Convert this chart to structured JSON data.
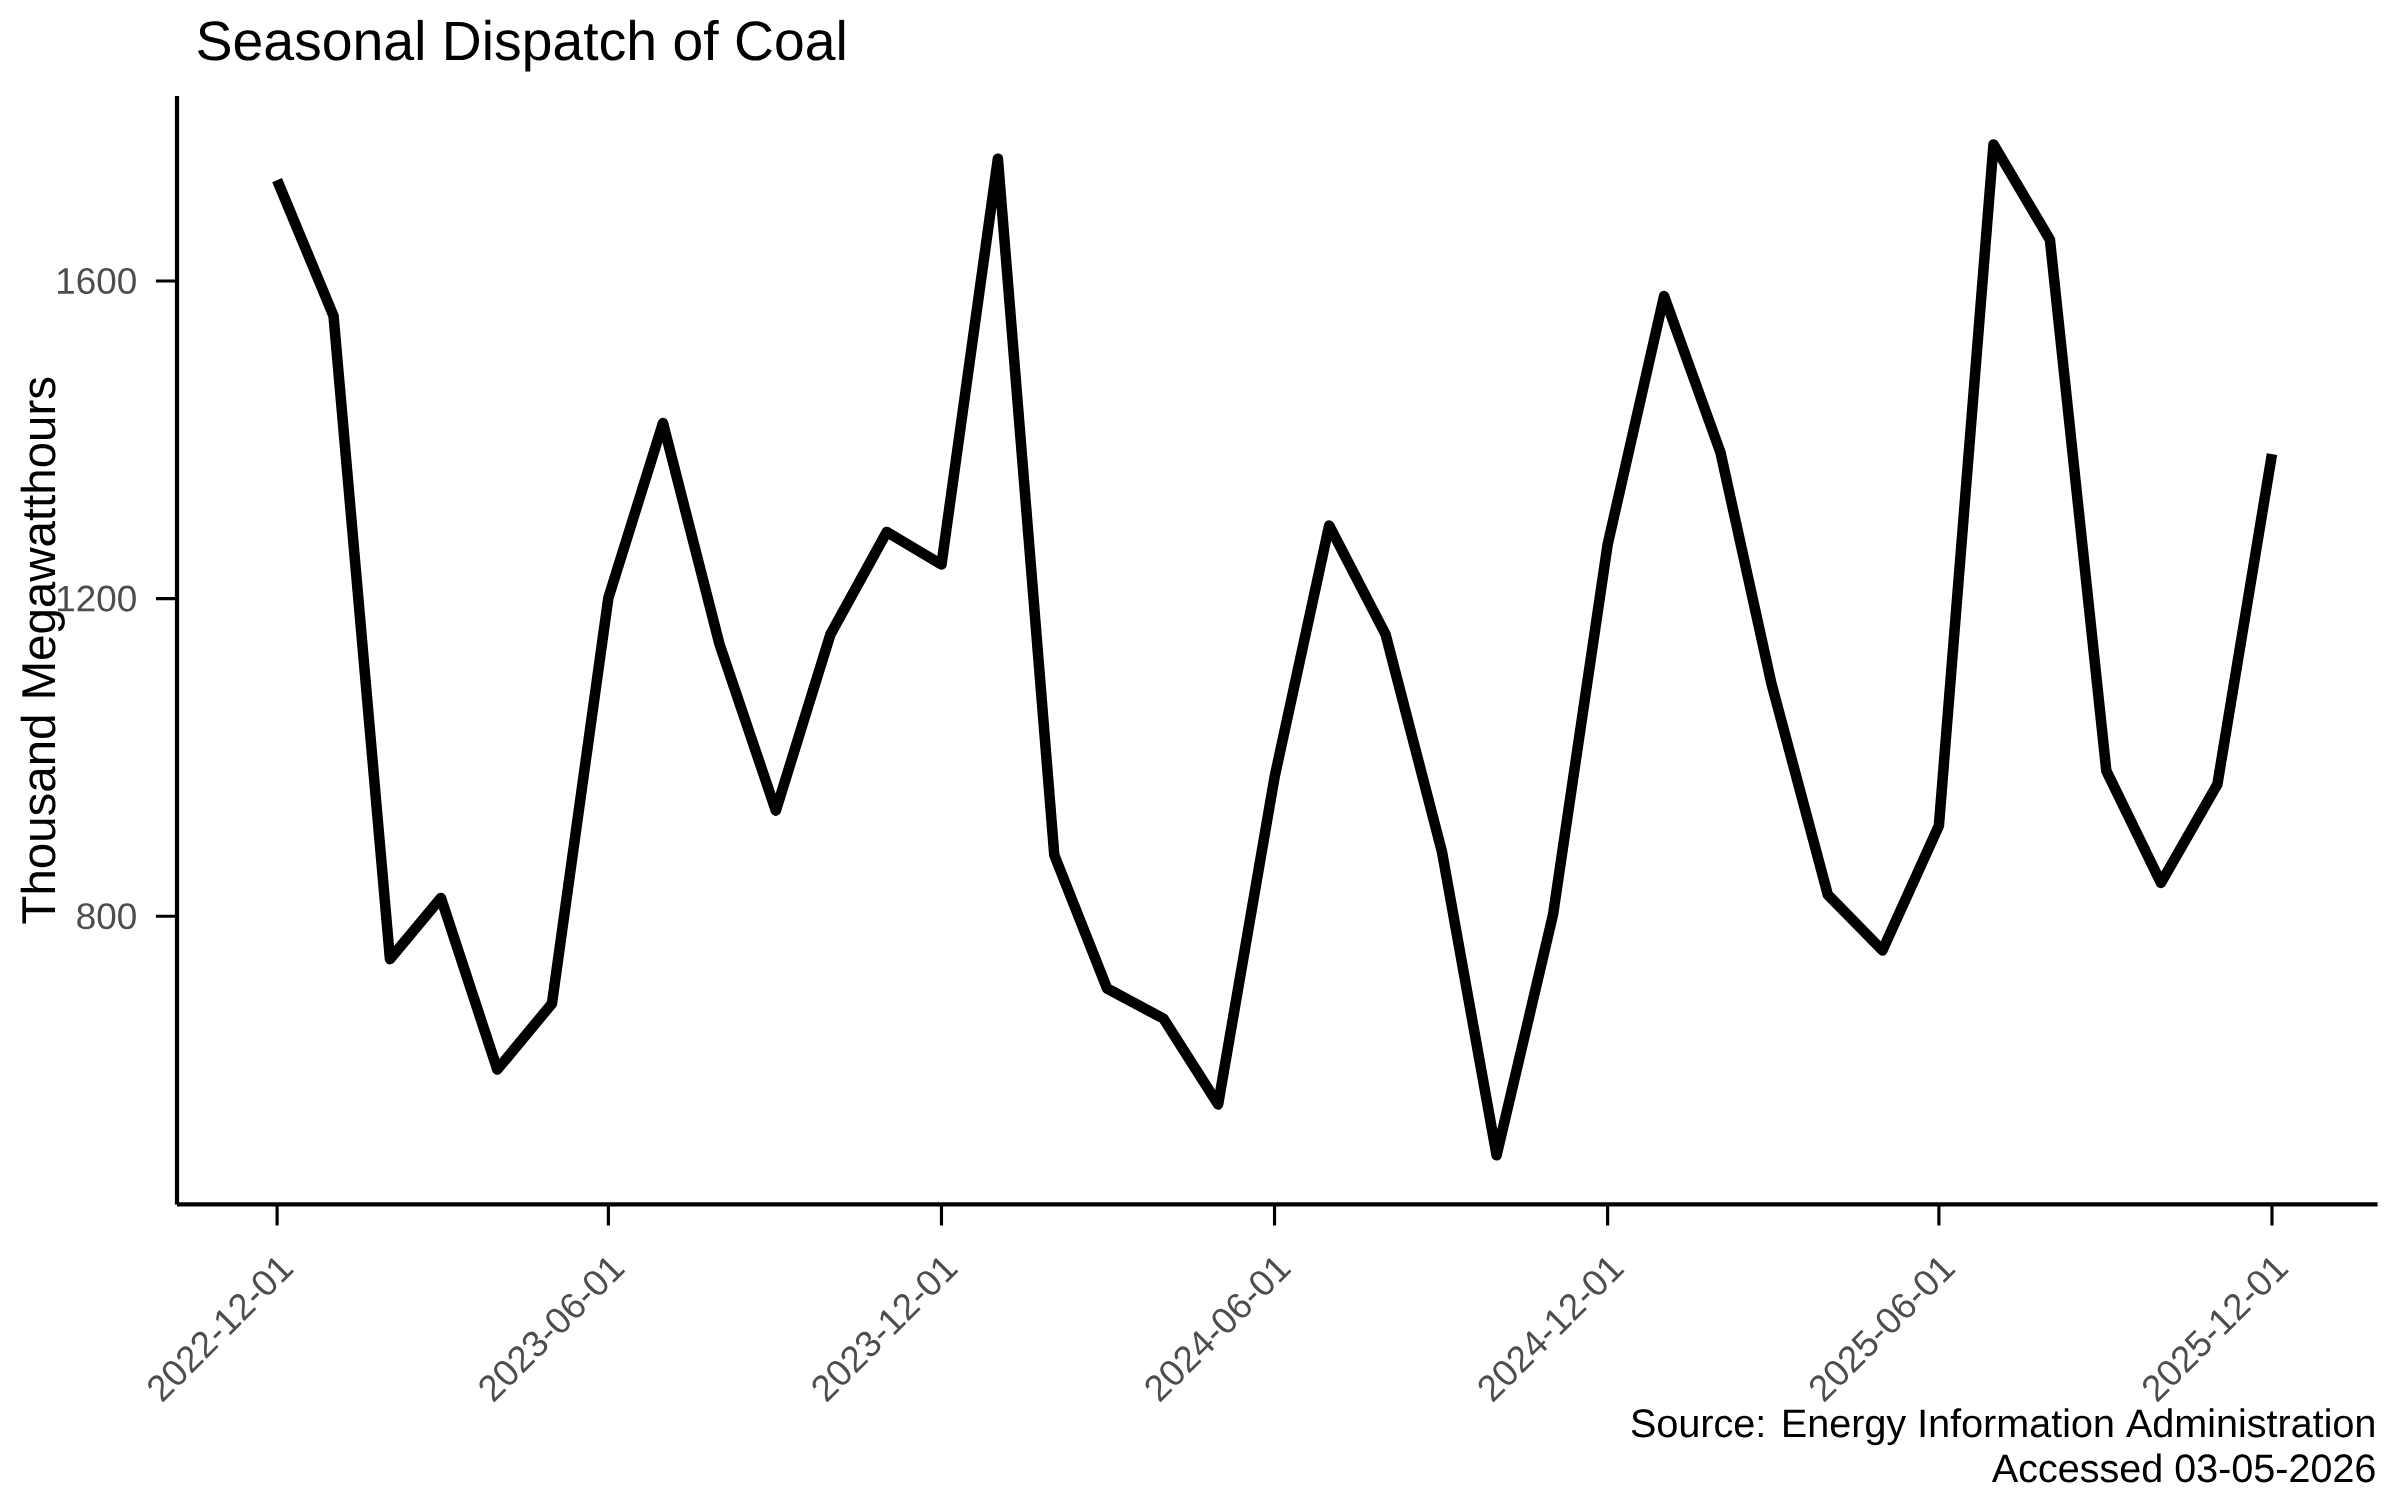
{
  "chart_data": {
    "type": "line",
    "title": "Seasonal Dispatch of Coal",
    "ylabel": "Thousand Megawatthours",
    "x": [
      "2022-12",
      "2023-01",
      "2023-02",
      "2023-03",
      "2023-04",
      "2023-05",
      "2023-06",
      "2023-07",
      "2023-08",
      "2023-09",
      "2023-10",
      "2023-11",
      "2023-12",
      "2024-01",
      "2024-02",
      "2024-03",
      "2024-04",
      "2024-05",
      "2024-06",
      "2024-07",
      "2024-08",
      "2024-09",
      "2024-10",
      "2024-11",
      "2024-12",
      "2025-01",
      "2025-02",
      "2025-03",
      "2025-04",
      "2025-05",
      "2025-06",
      "2025-07",
      "2025-08",
      "2025-09",
      "2025-10",
      "2025-11",
      "2025-12"
    ],
    "values": [
      1727,
      1556,
      746,
      823,
      607,
      690,
      1201,
      1421,
      1143,
      933,
      1155,
      1284,
      1243,
      1754,
      877,
      709,
      671,
      563,
      975,
      1292,
      1155,
      881,
      499,
      802,
      1268,
      1581,
      1384,
      1093,
      827,
      757,
      914,
      1772,
      1652,
      983,
      842,
      966,
      1382
    ],
    "color": "#000000",
    "xlim": [
      "2022-10-07",
      "2026-01-28"
    ],
    "ylim": [
      437,
      1833
    ],
    "xticks": [
      "2022-12-01",
      "2023-06-01",
      "2023-12-01",
      "2024-06-01",
      "2024-12-01",
      "2025-06-01",
      "2025-12-01"
    ],
    "yticks": [
      800,
      1200,
      1600
    ],
    "annotations": [
      "Source: Energy Information Administration",
      "Accessed 03-05-2026"
    ]
  }
}
